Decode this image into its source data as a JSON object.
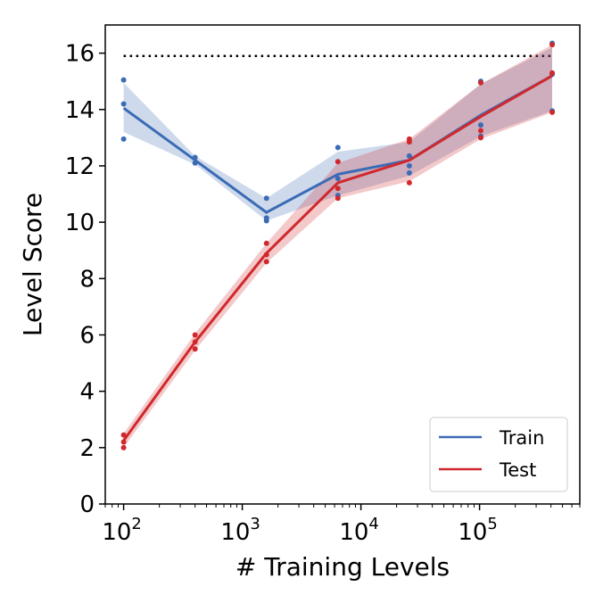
{
  "chart_data": {
    "type": "line",
    "xlabel": "# Training Levels",
    "ylabel": "Level Score",
    "xscale": "log",
    "xlim": [
      70,
      700000
    ],
    "ylim": [
      0,
      17
    ],
    "grid": false,
    "legend_position": "lower-right",
    "x_tick_labels": [
      {
        "value": 100,
        "base": "10",
        "exp": "2"
      },
      {
        "value": 1000,
        "base": "10",
        "exp": "3"
      },
      {
        "value": 10000,
        "base": "10",
        "exp": "4"
      },
      {
        "value": 100000,
        "base": "10",
        "exp": "5"
      }
    ],
    "y_ticks": [
      0,
      2,
      4,
      6,
      8,
      10,
      12,
      14,
      16
    ],
    "reference_line": {
      "y": 15.9,
      "style": "dotted",
      "color": "#000000"
    },
    "x": [
      100,
      400,
      1600,
      6400,
      25600,
      102400,
      409600
    ],
    "series": [
      {
        "name": "Train",
        "color": "#3b6bb5",
        "values": [
          14.05,
          12.2,
          10.35,
          11.7,
          12.2,
          13.8,
          15.2
        ],
        "band_low": [
          13.2,
          12.05,
          10.05,
          10.95,
          11.65,
          13.05,
          13.95
        ],
        "band_high": [
          14.95,
          12.35,
          10.85,
          12.5,
          12.85,
          14.9,
          16.2
        ],
        "points": [
          [
            100,
            15.05
          ],
          [
            100,
            14.2
          ],
          [
            100,
            12.95
          ],
          [
            400,
            12.3
          ],
          [
            400,
            12.1
          ],
          [
            1600,
            10.85
          ],
          [
            1600,
            10.15
          ],
          [
            1600,
            10.05
          ],
          [
            6400,
            12.65
          ],
          [
            6400,
            11.55
          ],
          [
            6400,
            10.95
          ],
          [
            25600,
            12.35
          ],
          [
            25600,
            12.0
          ],
          [
            25600,
            11.75
          ],
          [
            102400,
            15.0
          ],
          [
            102400,
            13.45
          ],
          [
            102400,
            13.05
          ],
          [
            409600,
            16.35
          ],
          [
            409600,
            15.25
          ],
          [
            409600,
            13.95
          ]
        ]
      },
      {
        "name": "Test",
        "color": "#d0282d",
        "values": [
          2.25,
          5.75,
          8.9,
          11.4,
          12.2,
          13.75,
          15.2
        ],
        "band_low": [
          2.0,
          5.45,
          8.55,
          10.85,
          11.45,
          12.95,
          13.9
        ],
        "band_high": [
          2.5,
          6.05,
          9.25,
          12.1,
          12.95,
          14.9,
          16.3
        ],
        "points": [
          [
            100,
            2.45
          ],
          [
            100,
            2.2
          ],
          [
            100,
            2.0
          ],
          [
            400,
            6.0
          ],
          [
            400,
            5.75
          ],
          [
            400,
            5.5
          ],
          [
            1600,
            9.25
          ],
          [
            1600,
            8.85
          ],
          [
            1600,
            8.6
          ],
          [
            6400,
            12.15
          ],
          [
            6400,
            11.2
          ],
          [
            6400,
            10.85
          ],
          [
            25600,
            12.95
          ],
          [
            25600,
            12.85
          ],
          [
            25600,
            11.4
          ],
          [
            102400,
            14.95
          ],
          [
            102400,
            13.25
          ],
          [
            102400,
            13.0
          ],
          [
            409600,
            16.3
          ],
          [
            409600,
            15.3
          ],
          [
            409600,
            13.9
          ]
        ]
      }
    ]
  }
}
